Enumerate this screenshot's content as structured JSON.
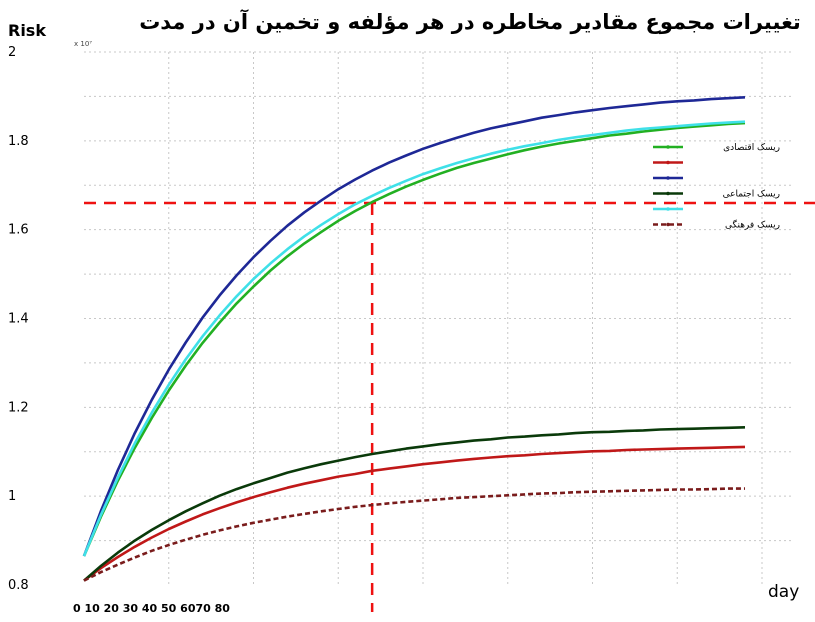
{
  "chart_data": {
    "type": "line",
    "title": "تغییرات مجموع مقادیر مخاطره در هر مؤلفه و تخمین آن در مدت",
    "ylabel": "Risk",
    "xlabel": "day",
    "y_multiplier": "x 10⁷",
    "ylim": [
      0.8,
      2.0
    ],
    "xlim": [
      0,
      80
    ],
    "y_ticks": [
      "0.8",
      "1",
      "1.2",
      "1.4",
      "1.6",
      "1.8",
      "2"
    ],
    "x_tick_text": "0 10 20 30 40 50 6070 80",
    "grid": true,
    "legend_position": "right",
    "series": [
      {
        "name": "ریسک اقتصادی",
        "color": "#22b022",
        "dash": "solid",
        "x": [
          0,
          2,
          4,
          6,
          8,
          10,
          12,
          14,
          16,
          18,
          20,
          22,
          24,
          26,
          28,
          30,
          32,
          34,
          36,
          38,
          40,
          42,
          44,
          46,
          48,
          50,
          52,
          54,
          56,
          58,
          60,
          62,
          64,
          66,
          68,
          70,
          72,
          74,
          76,
          78
        ],
        "values": [
          0.865,
          0.954,
          1.035,
          1.109,
          1.176,
          1.238,
          1.294,
          1.345,
          1.391,
          1.434,
          1.472,
          1.508,
          1.54,
          1.569,
          1.595,
          1.62,
          1.642,
          1.662,
          1.68,
          1.697,
          1.712,
          1.726,
          1.739,
          1.75,
          1.76,
          1.77,
          1.779,
          1.787,
          1.794,
          1.8,
          1.806,
          1.812,
          1.816,
          1.821,
          1.825,
          1.829,
          1.832,
          1.835,
          1.838,
          1.84
        ]
      },
      {
        "name": "",
        "color": "#c01818",
        "dash": "solid",
        "x": [
          0,
          2,
          4,
          6,
          8,
          10,
          12,
          14,
          16,
          18,
          20,
          22,
          24,
          26,
          28,
          30,
          32,
          34,
          36,
          38,
          40,
          42,
          44,
          46,
          48,
          50,
          52,
          54,
          56,
          58,
          60,
          62,
          64,
          66,
          68,
          70,
          72,
          74,
          76,
          78
        ],
        "values": [
          0.81,
          0.838,
          0.863,
          0.886,
          0.907,
          0.926,
          0.943,
          0.959,
          0.973,
          0.986,
          0.998,
          1.009,
          1.019,
          1.028,
          1.036,
          1.044,
          1.05,
          1.057,
          1.062,
          1.067,
          1.072,
          1.076,
          1.08,
          1.084,
          1.087,
          1.09,
          1.092,
          1.095,
          1.097,
          1.099,
          1.101,
          1.102,
          1.104,
          1.105,
          1.106,
          1.107,
          1.108,
          1.109,
          1.11,
          1.111
        ]
      },
      {
        "name": "",
        "color": "#1e2896",
        "dash": "solid",
        "x": [
          0,
          2,
          4,
          6,
          8,
          10,
          12,
          14,
          16,
          18,
          20,
          22,
          24,
          26,
          28,
          30,
          32,
          34,
          36,
          38,
          40,
          42,
          44,
          46,
          48,
          50,
          52,
          54,
          56,
          58,
          60,
          62,
          64,
          66,
          68,
          70,
          72,
          74,
          76,
          78
        ],
        "values": [
          0.865,
          0.967,
          1.059,
          1.142,
          1.217,
          1.285,
          1.346,
          1.402,
          1.452,
          1.497,
          1.538,
          1.575,
          1.609,
          1.639,
          1.666,
          1.691,
          1.713,
          1.733,
          1.751,
          1.767,
          1.782,
          1.795,
          1.807,
          1.818,
          1.828,
          1.836,
          1.844,
          1.852,
          1.858,
          1.864,
          1.869,
          1.874,
          1.878,
          1.882,
          1.886,
          1.889,
          1.891,
          1.894,
          1.896,
          1.898
        ]
      },
      {
        "name": "ریسک اجتماعی",
        "color": "#0a3a0a",
        "dash": "solid",
        "x": [
          0,
          2,
          4,
          6,
          8,
          10,
          12,
          14,
          16,
          18,
          20,
          22,
          24,
          26,
          28,
          30,
          32,
          34,
          36,
          38,
          40,
          42,
          44,
          46,
          48,
          50,
          52,
          54,
          56,
          58,
          60,
          62,
          64,
          66,
          68,
          70,
          72,
          74,
          76,
          78
        ],
        "values": [
          0.81,
          0.843,
          0.873,
          0.9,
          0.924,
          0.946,
          0.966,
          0.984,
          1.001,
          1.016,
          1.029,
          1.041,
          1.053,
          1.063,
          1.072,
          1.08,
          1.088,
          1.095,
          1.101,
          1.107,
          1.112,
          1.117,
          1.121,
          1.125,
          1.128,
          1.132,
          1.134,
          1.137,
          1.139,
          1.142,
          1.144,
          1.145,
          1.147,
          1.148,
          1.15,
          1.151,
          1.152,
          1.153,
          1.154,
          1.155
        ]
      },
      {
        "name": "",
        "color": "#3fe0e8",
        "dash": "solid",
        "x": [
          0,
          2,
          4,
          6,
          8,
          10,
          12,
          14,
          16,
          18,
          20,
          22,
          24,
          26,
          28,
          30,
          32,
          34,
          36,
          38,
          40,
          42,
          44,
          46,
          48,
          50,
          52,
          54,
          56,
          58,
          60,
          62,
          64,
          66,
          68,
          70,
          72,
          74,
          76,
          78
        ],
        "values": [
          0.865,
          0.958,
          1.042,
          1.119,
          1.188,
          1.251,
          1.308,
          1.36,
          1.407,
          1.45,
          1.489,
          1.524,
          1.556,
          1.585,
          1.611,
          1.635,
          1.657,
          1.676,
          1.694,
          1.71,
          1.725,
          1.738,
          1.75,
          1.761,
          1.771,
          1.78,
          1.788,
          1.795,
          1.802,
          1.808,
          1.813,
          1.818,
          1.823,
          1.827,
          1.83,
          1.833,
          1.836,
          1.839,
          1.841,
          1.843
        ]
      },
      {
        "name": "ریسک فرهنگی",
        "color": "#7a1c1c",
        "dash": "dashed",
        "x": [
          0,
          2,
          4,
          6,
          8,
          10,
          12,
          14,
          16,
          18,
          20,
          22,
          24,
          26,
          28,
          30,
          32,
          34,
          36,
          38,
          40,
          42,
          44,
          46,
          48,
          50,
          52,
          54,
          56,
          58,
          60,
          62,
          64,
          66,
          68,
          70,
          72,
          74,
          76,
          78
        ],
        "values": [
          0.81,
          0.829,
          0.846,
          0.862,
          0.877,
          0.89,
          0.902,
          0.913,
          0.923,
          0.932,
          0.94,
          0.947,
          0.954,
          0.96,
          0.966,
          0.971,
          0.976,
          0.98,
          0.984,
          0.987,
          0.99,
          0.993,
          0.996,
          0.998,
          1.0,
          1.002,
          1.004,
          1.006,
          1.007,
          1.009,
          1.01,
          1.011,
          1.012,
          1.013,
          1.014,
          1.015,
          1.015,
          1.016,
          1.017,
          1.017
        ]
      }
    ],
    "reference_lines": [
      {
        "orientation": "horizontal",
        "value": 1.66,
        "color": "#ee1111",
        "dash": "dashed"
      },
      {
        "orientation": "vertical",
        "value": 34,
        "color": "#ee1111",
        "dash": "dashed"
      }
    ]
  }
}
